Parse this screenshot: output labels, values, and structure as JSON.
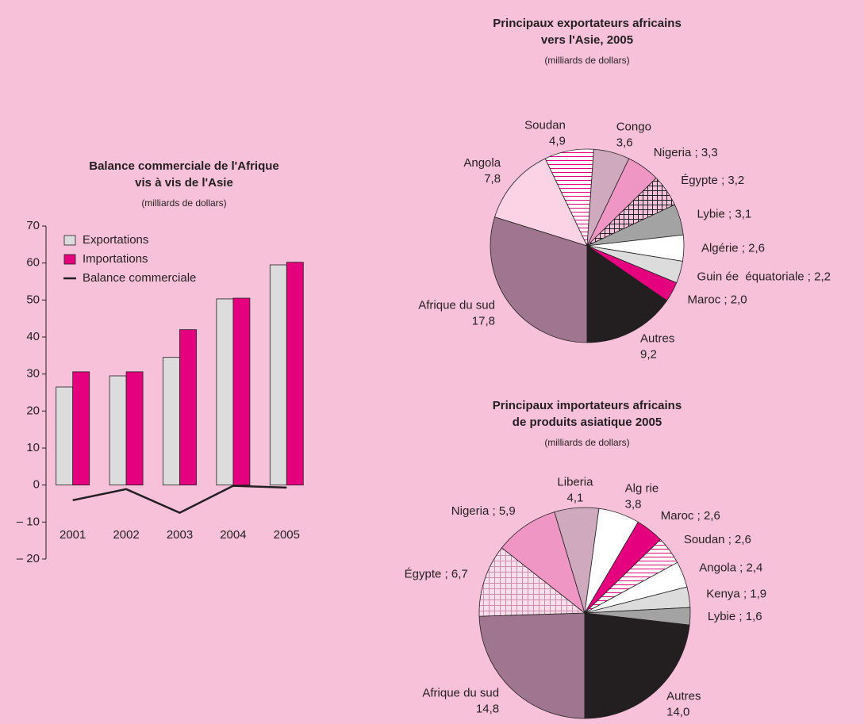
{
  "chart_data": [
    {
      "type": "bar",
      "title": [
        "Balance commerciale de l'Afrique",
        "vis à vis de l'Asie"
      ],
      "subtitle": "(milliards de dollars)",
      "categories": [
        "2001",
        "2002",
        "2003",
        "2004",
        "2005"
      ],
      "series": [
        {
          "name": "Exportations",
          "color": "#dcdcdc",
          "values": [
            26.5,
            29.5,
            34.5,
            50.3,
            59.5
          ]
        },
        {
          "name": "Importations",
          "color": "#e5007e",
          "values": [
            30.6,
            30.6,
            42.0,
            50.5,
            60.2
          ]
        },
        {
          "name": "Balance commerciale",
          "color": "#231f20",
          "type": "line",
          "values": [
            -4.1,
            -1.1,
            -7.5,
            -0.2,
            -0.7
          ]
        }
      ],
      "ylim": [
        -20,
        70
      ],
      "yticks": [
        {
          "value": -20,
          "label": "– 20"
        },
        {
          "value": -10,
          "label": "– 10"
        },
        0,
        10,
        20,
        30,
        40,
        50,
        60,
        70
      ],
      "legend": "upper left"
    },
    {
      "type": "pie",
      "title": [
        "Principaux exportateurs africains",
        "vers l'Asie, 2005"
      ],
      "subtitle": "(milliards de dollars)",
      "label_separator": " ; ",
      "categories": [
        "Afrique du sud",
        "Angola",
        "Soudan",
        "Congo",
        "Nigeria",
        "Égypte",
        "Lybie",
        "Algérie",
        "Guin ée  équatoriale",
        "Maroc",
        "Autres"
      ],
      "values": [
        17.8,
        7.8,
        4.9,
        3.6,
        3.3,
        3.2,
        3.1,
        2.6,
        2.2,
        2.0,
        9.2
      ],
      "value_labels": [
        "17,8",
        "7,8",
        "4,9",
        "3,6",
        "3,3",
        "3,2",
        "3,1",
        "2,6",
        "2,2",
        "2,0",
        "9,2"
      ],
      "label_inline": [
        false,
        false,
        false,
        false,
        true,
        true,
        true,
        true,
        true,
        true,
        false
      ],
      "colors": [
        "#a07590",
        "#fbd3e5",
        "url(#stripes)",
        "#cfa9bd",
        "#f096c4",
        "url(#hatch-dark)",
        "#a3a3a3",
        "#ffffff",
        "#dcdcdc",
        "#e5007e",
        "#231f20"
      ]
    },
    {
      "type": "pie",
      "title": [
        "Principaux importateurs africains",
        "de produits asiatique 2005"
      ],
      "subtitle": "(milliards de dollars)",
      "label_separator": " ; ",
      "categories": [
        "Afrique du sud",
        "Égypte",
        "Nigeria",
        "Liberia",
        "Alg rie",
        "Maroc",
        "Soudan",
        "Angola",
        "Kenya",
        "Lybie",
        "Autres"
      ],
      "values": [
        14.8,
        6.7,
        5.9,
        4.1,
        3.8,
        2.6,
        2.6,
        2.4,
        1.9,
        1.6,
        14.0
      ],
      "value_labels": [
        "14,8",
        "6,7",
        "5,9",
        "4,1",
        "3,8",
        "2,6",
        "2,6",
        "2,4",
        "1,9",
        "1,6",
        "14,0"
      ],
      "label_inline": [
        false,
        true,
        true,
        false,
        false,
        true,
        true,
        true,
        true,
        true,
        false
      ],
      "colors": [
        "#a07590",
        "url(#hatch-light)",
        "#f096c4",
        "#cfa9bd",
        "#ffffff",
        "#e5007e",
        "url(#stripes)",
        "#ffffff",
        "#dcdcdc",
        "#a3a3a3",
        "#231f20"
      ]
    }
  ]
}
